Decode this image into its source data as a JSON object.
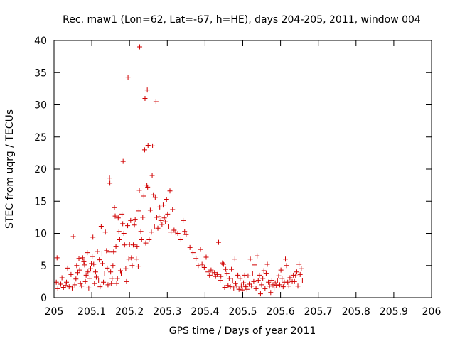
{
  "chart_data": {
    "type": "scatter",
    "title": "Rec. maw1 (Lon=62, Lat=-67, h=HE), days 204-205, 2011, window 004",
    "xlabel": "GPS time / Days of year 2011",
    "ylabel": "STEC from uqrg / TECUs",
    "xlim": [
      205,
      206
    ],
    "ylim": [
      0,
      40
    ],
    "x_ticks": [
      "205",
      "205.1",
      "205.2",
      "205.3",
      "205.4",
      "205.5",
      "205.6",
      "205.7",
      "205.8",
      "205.9",
      "206"
    ],
    "y_ticks": [
      "0",
      "5",
      "10",
      "15",
      "20",
      "25",
      "30",
      "35",
      "40"
    ],
    "grid": false,
    "marker": "+",
    "color": "#d00000",
    "series": [
      {
        "points": [
          [
            205.008,
            6.2
          ],
          [
            205.006,
            2.4
          ],
          [
            205.01,
            1.4
          ],
          [
            205.018,
            2.1
          ],
          [
            205.021,
            3.1
          ],
          [
            205.025,
            1.6
          ],
          [
            205.03,
            1.9
          ],
          [
            205.033,
            2.4
          ],
          [
            205.036,
            4.6
          ],
          [
            205.04,
            1.7
          ],
          [
            205.045,
            3.6
          ],
          [
            205.048,
            1.5
          ],
          [
            205.051,
            9.5
          ],
          [
            205.055,
            2.0
          ],
          [
            205.058,
            2.9
          ],
          [
            205.06,
            5.0
          ],
          [
            205.063,
            3.9
          ],
          [
            205.066,
            6.1
          ],
          [
            205.068,
            4.3
          ],
          [
            205.07,
            2.2
          ],
          [
            205.073,
            1.8
          ],
          [
            205.076,
            6.2
          ],
          [
            205.079,
            5.6
          ],
          [
            205.081,
            5.1
          ],
          [
            205.083,
            2.5
          ],
          [
            205.085,
            3.5
          ],
          [
            205.088,
            7.0
          ],
          [
            205.09,
            4.0
          ],
          [
            205.092,
            1.5
          ],
          [
            205.095,
            3.0
          ],
          [
            205.097,
            4.5
          ],
          [
            205.099,
            5.3
          ],
          [
            205.101,
            6.4
          ],
          [
            205.103,
            9.4
          ],
          [
            205.105,
            5.2
          ],
          [
            205.107,
            2.2
          ],
          [
            205.11,
            4.0
          ],
          [
            205.112,
            3.2
          ],
          [
            205.115,
            7.2
          ],
          [
            205.118,
            2.6
          ],
          [
            205.12,
            5.9
          ],
          [
            205.122,
            1.7
          ],
          [
            205.125,
            11.1
          ],
          [
            205.127,
            6.8
          ],
          [
            205.129,
            5.3
          ],
          [
            205.131,
            2.4
          ],
          [
            205.134,
            3.7
          ],
          [
            205.136,
            10.2
          ],
          [
            205.139,
            7.3
          ],
          [
            205.141,
            4.6
          ],
          [
            205.143,
            2.0
          ],
          [
            205.146,
            7.1
          ],
          [
            205.147,
            18.6
          ],
          [
            205.148,
            17.8
          ],
          [
            205.15,
            4.0
          ],
          [
            205.152,
            2.2
          ],
          [
            205.154,
            3.0
          ],
          [
            205.156,
            5.0
          ],
          [
            205.158,
            7.1
          ],
          [
            205.16,
            14.0
          ],
          [
            205.162,
            12.7
          ],
          [
            205.164,
            8.0
          ],
          [
            205.166,
            2.2
          ],
          [
            205.168,
            3.0
          ],
          [
            205.17,
            12.4
          ],
          [
            205.172,
            10.3
          ],
          [
            205.174,
            9.0
          ],
          [
            205.176,
            4.2
          ],
          [
            205.178,
            3.7
          ],
          [
            205.18,
            13.0
          ],
          [
            205.182,
            11.5
          ],
          [
            205.183,
            21.2
          ],
          [
            205.185,
            10.0
          ],
          [
            205.187,
            8.2
          ],
          [
            205.19,
            4.5
          ],
          [
            205.192,
            2.5
          ],
          [
            205.195,
            11.2
          ],
          [
            205.196,
            34.3
          ],
          [
            205.198,
            6.0
          ],
          [
            205.2,
            8.3
          ],
          [
            205.203,
            12.0
          ],
          [
            205.205,
            6.2
          ],
          [
            205.207,
            5.0
          ],
          [
            205.21,
            8.2
          ],
          [
            205.213,
            11.3
          ],
          [
            205.215,
            12.2
          ],
          [
            205.218,
            6.0
          ],
          [
            205.22,
            8.0
          ],
          [
            205.223,
            4.9
          ],
          [
            205.225,
            13.5
          ],
          [
            205.226,
            16.7
          ],
          [
            205.227,
            39.0
          ],
          [
            205.23,
            10.3
          ],
          [
            205.232,
            9.0
          ],
          [
            205.235,
            12.5
          ],
          [
            205.238,
            15.8
          ],
          [
            205.24,
            23.0
          ],
          [
            205.241,
            31.0
          ],
          [
            205.243,
            8.5
          ],
          [
            205.246,
            17.5
          ],
          [
            205.247,
            32.3
          ],
          [
            205.248,
            17.2
          ],
          [
            205.249,
            23.7
          ],
          [
            205.252,
            9.0
          ],
          [
            205.255,
            13.6
          ],
          [
            205.258,
            10.2
          ],
          [
            205.26,
            19.0
          ],
          [
            205.261,
            23.6
          ],
          [
            205.263,
            16.0
          ],
          [
            205.266,
            11.0
          ],
          [
            205.268,
            15.6
          ],
          [
            205.27,
            30.5
          ],
          [
            205.272,
            12.5
          ],
          [
            205.275,
            10.8
          ],
          [
            205.278,
            12.6
          ],
          [
            205.28,
            14.1
          ],
          [
            205.283,
            12.0
          ],
          [
            205.286,
            11.4
          ],
          [
            205.289,
            14.4
          ],
          [
            205.292,
            12.4
          ],
          [
            205.295,
            11.8
          ],
          [
            205.298,
            15.3
          ],
          [
            205.301,
            13.0
          ],
          [
            205.304,
            11.0
          ],
          [
            205.307,
            16.6
          ],
          [
            205.31,
            10.2
          ],
          [
            205.314,
            13.7
          ],
          [
            205.318,
            10.5
          ],
          [
            205.322,
            10.2
          ],
          [
            205.328,
            10.0
          ],
          [
            205.336,
            9.0
          ],
          [
            205.342,
            12.0
          ],
          [
            205.346,
            10.3
          ],
          [
            205.35,
            9.8
          ],
          [
            205.36,
            7.8
          ],
          [
            205.368,
            7.0
          ],
          [
            205.376,
            6.1
          ],
          [
            205.382,
            5.0
          ],
          [
            205.388,
            7.5
          ],
          [
            205.392,
            5.2
          ],
          [
            205.398,
            4.7
          ],
          [
            205.403,
            6.3
          ],
          [
            205.408,
            4.0
          ],
          [
            205.412,
            3.5
          ],
          [
            205.416,
            4.3
          ],
          [
            205.42,
            3.7
          ],
          [
            205.425,
            3.9
          ],
          [
            205.428,
            3.3
          ],
          [
            205.432,
            3.6
          ],
          [
            205.436,
            8.6
          ],
          [
            205.44,
            2.7
          ],
          [
            205.442,
            3.3
          ],
          [
            205.446,
            5.4
          ],
          [
            205.449,
            5.2
          ],
          [
            205.452,
            1.6
          ],
          [
            205.455,
            4.4
          ],
          [
            205.458,
            3.8
          ],
          [
            205.461,
            1.9
          ],
          [
            205.464,
            3.0
          ],
          [
            205.467,
            1.7
          ],
          [
            205.47,
            4.4
          ],
          [
            205.473,
            2.6
          ],
          [
            205.476,
            1.5
          ],
          [
            205.479,
            6.0
          ],
          [
            205.481,
            2.2
          ],
          [
            205.484,
            1.8
          ],
          [
            205.487,
            3.5
          ],
          [
            205.49,
            1.3
          ],
          [
            205.493,
            3.0
          ],
          [
            205.496,
            1.8
          ],
          [
            205.499,
            1.2
          ],
          [
            205.502,
            2.3
          ],
          [
            205.505,
            3.5
          ],
          [
            205.508,
            1.7
          ],
          [
            205.511,
            1.3
          ],
          [
            205.514,
            3.4
          ],
          [
            205.517,
            2.1
          ],
          [
            205.52,
            6.0
          ],
          [
            205.523,
            1.8
          ],
          [
            205.526,
            3.7
          ],
          [
            205.529,
            2.5
          ],
          [
            205.532,
            5.1
          ],
          [
            205.535,
            1.4
          ],
          [
            205.538,
            6.5
          ],
          [
            205.541,
            2.7
          ],
          [
            205.544,
            3.5
          ],
          [
            205.547,
            0.6
          ],
          [
            205.55,
            2.0
          ],
          [
            205.553,
            3.0
          ],
          [
            205.556,
            4.2
          ],
          [
            205.559,
            1.4
          ],
          [
            205.562,
            3.8
          ],
          [
            205.565,
            5.2
          ],
          [
            205.568,
            2.4
          ],
          [
            205.571,
            1.8
          ],
          [
            205.574,
            0.8
          ],
          [
            205.577,
            2.7
          ],
          [
            205.58,
            2.0
          ],
          [
            205.583,
            1.5
          ],
          [
            205.586,
            2.3
          ],
          [
            205.589,
            1.9
          ],
          [
            205.592,
            2.6
          ],
          [
            205.595,
            3.4
          ],
          [
            205.598,
            2.0
          ],
          [
            205.601,
            4.3
          ],
          [
            205.604,
            3.0
          ],
          [
            205.607,
            1.7
          ],
          [
            205.61,
            2.4
          ],
          [
            205.613,
            6.0
          ],
          [
            205.616,
            5.0
          ],
          [
            205.619,
            2.4
          ],
          [
            205.622,
            1.8
          ],
          [
            205.625,
            3.1
          ],
          [
            205.628,
            3.7
          ],
          [
            205.631,
            2.5
          ],
          [
            205.634,
            3.5
          ],
          [
            205.637,
            2.5
          ],
          [
            205.64,
            3.4
          ],
          [
            205.643,
            4.0
          ],
          [
            205.646,
            1.8
          ],
          [
            205.649,
            5.2
          ],
          [
            205.652,
            3.6
          ],
          [
            205.655,
            4.5
          ],
          [
            205.658,
            2.6
          ]
        ]
      }
    ]
  }
}
